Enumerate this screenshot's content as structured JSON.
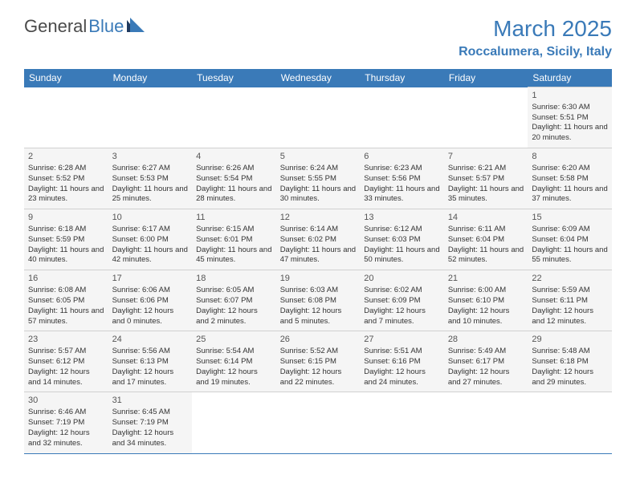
{
  "logo": {
    "text1": "General",
    "text2": "Blue"
  },
  "title": "March 2025",
  "location": "Roccalumera, Sicily, Italy",
  "colors": {
    "brand_blue": "#3a7ab8",
    "header_text": "#ffffff",
    "cell_bg": "#f5f5f5",
    "cell_text": "#333333",
    "border_gray": "#d0d0d0"
  },
  "day_headers": [
    "Sunday",
    "Monday",
    "Tuesday",
    "Wednesday",
    "Thursday",
    "Friday",
    "Saturday"
  ],
  "weeks": [
    [
      null,
      null,
      null,
      null,
      null,
      null,
      {
        "n": "1",
        "sr": "6:30 AM",
        "ss": "5:51 PM",
        "dl": "11 hours and 20 minutes."
      }
    ],
    [
      {
        "n": "2",
        "sr": "6:28 AM",
        "ss": "5:52 PM",
        "dl": "11 hours and 23 minutes."
      },
      {
        "n": "3",
        "sr": "6:27 AM",
        "ss": "5:53 PM",
        "dl": "11 hours and 25 minutes."
      },
      {
        "n": "4",
        "sr": "6:26 AM",
        "ss": "5:54 PM",
        "dl": "11 hours and 28 minutes."
      },
      {
        "n": "5",
        "sr": "6:24 AM",
        "ss": "5:55 PM",
        "dl": "11 hours and 30 minutes."
      },
      {
        "n": "6",
        "sr": "6:23 AM",
        "ss": "5:56 PM",
        "dl": "11 hours and 33 minutes."
      },
      {
        "n": "7",
        "sr": "6:21 AM",
        "ss": "5:57 PM",
        "dl": "11 hours and 35 minutes."
      },
      {
        "n": "8",
        "sr": "6:20 AM",
        "ss": "5:58 PM",
        "dl": "11 hours and 37 minutes."
      }
    ],
    [
      {
        "n": "9",
        "sr": "6:18 AM",
        "ss": "5:59 PM",
        "dl": "11 hours and 40 minutes."
      },
      {
        "n": "10",
        "sr": "6:17 AM",
        "ss": "6:00 PM",
        "dl": "11 hours and 42 minutes."
      },
      {
        "n": "11",
        "sr": "6:15 AM",
        "ss": "6:01 PM",
        "dl": "11 hours and 45 minutes."
      },
      {
        "n": "12",
        "sr": "6:14 AM",
        "ss": "6:02 PM",
        "dl": "11 hours and 47 minutes."
      },
      {
        "n": "13",
        "sr": "6:12 AM",
        "ss": "6:03 PM",
        "dl": "11 hours and 50 minutes."
      },
      {
        "n": "14",
        "sr": "6:11 AM",
        "ss": "6:04 PM",
        "dl": "11 hours and 52 minutes."
      },
      {
        "n": "15",
        "sr": "6:09 AM",
        "ss": "6:04 PM",
        "dl": "11 hours and 55 minutes."
      }
    ],
    [
      {
        "n": "16",
        "sr": "6:08 AM",
        "ss": "6:05 PM",
        "dl": "11 hours and 57 minutes."
      },
      {
        "n": "17",
        "sr": "6:06 AM",
        "ss": "6:06 PM",
        "dl": "12 hours and 0 minutes."
      },
      {
        "n": "18",
        "sr": "6:05 AM",
        "ss": "6:07 PM",
        "dl": "12 hours and 2 minutes."
      },
      {
        "n": "19",
        "sr": "6:03 AM",
        "ss": "6:08 PM",
        "dl": "12 hours and 5 minutes."
      },
      {
        "n": "20",
        "sr": "6:02 AM",
        "ss": "6:09 PM",
        "dl": "12 hours and 7 minutes."
      },
      {
        "n": "21",
        "sr": "6:00 AM",
        "ss": "6:10 PM",
        "dl": "12 hours and 10 minutes."
      },
      {
        "n": "22",
        "sr": "5:59 AM",
        "ss": "6:11 PM",
        "dl": "12 hours and 12 minutes."
      }
    ],
    [
      {
        "n": "23",
        "sr": "5:57 AM",
        "ss": "6:12 PM",
        "dl": "12 hours and 14 minutes."
      },
      {
        "n": "24",
        "sr": "5:56 AM",
        "ss": "6:13 PM",
        "dl": "12 hours and 17 minutes."
      },
      {
        "n": "25",
        "sr": "5:54 AM",
        "ss": "6:14 PM",
        "dl": "12 hours and 19 minutes."
      },
      {
        "n": "26",
        "sr": "5:52 AM",
        "ss": "6:15 PM",
        "dl": "12 hours and 22 minutes."
      },
      {
        "n": "27",
        "sr": "5:51 AM",
        "ss": "6:16 PM",
        "dl": "12 hours and 24 minutes."
      },
      {
        "n": "28",
        "sr": "5:49 AM",
        "ss": "6:17 PM",
        "dl": "12 hours and 27 minutes."
      },
      {
        "n": "29",
        "sr": "5:48 AM",
        "ss": "6:18 PM",
        "dl": "12 hours and 29 minutes."
      }
    ],
    [
      {
        "n": "30",
        "sr": "6:46 AM",
        "ss": "7:19 PM",
        "dl": "12 hours and 32 minutes."
      },
      {
        "n": "31",
        "sr": "6:45 AM",
        "ss": "7:19 PM",
        "dl": "12 hours and 34 minutes."
      },
      null,
      null,
      null,
      null,
      null
    ]
  ],
  "labels": {
    "sunrise": "Sunrise:",
    "sunset": "Sunset:",
    "daylight": "Daylight:"
  }
}
